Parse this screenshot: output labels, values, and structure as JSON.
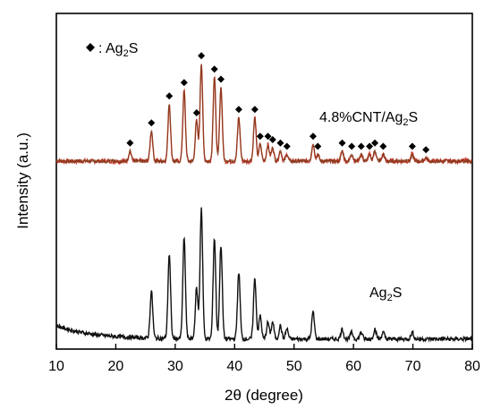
{
  "chart_data": {
    "type": "line",
    "title": "",
    "xlabel": "2θ (degree)",
    "ylabel": "Intensity (a.u.)",
    "xlim": [
      10,
      80
    ],
    "ylim": [
      0,
      1
    ],
    "x_ticks": [
      10,
      20,
      30,
      40,
      50,
      60,
      70,
      80
    ],
    "y_ticks_shown": false,
    "grid": false,
    "legend": {
      "marker": "diamond",
      "text_prefix": ": Ag",
      "text_sub": "2",
      "text_suffix": "S",
      "position": "top-left"
    },
    "series": [
      {
        "label_main": "4.8%CNT/Ag",
        "label_sub": "2",
        "label_tail": "S",
        "color": "#c0392b",
        "overlay_color": "#7a3b1a",
        "baseline": 0.56,
        "peaks": [
          {
            "x": 22.4,
            "h": 0.03
          },
          {
            "x": 26.0,
            "h": 0.09
          },
          {
            "x": 29.0,
            "h": 0.17
          },
          {
            "x": 31.5,
            "h": 0.21
          },
          {
            "x": 33.6,
            "h": 0.12
          },
          {
            "x": 34.4,
            "h": 0.29
          },
          {
            "x": 36.6,
            "h": 0.25
          },
          {
            "x": 37.7,
            "h": 0.22
          },
          {
            "x": 40.7,
            "h": 0.13
          },
          {
            "x": 43.4,
            "h": 0.13
          },
          {
            "x": 44.3,
            "h": 0.05
          },
          {
            "x": 45.6,
            "h": 0.05
          },
          {
            "x": 46.4,
            "h": 0.04
          },
          {
            "x": 47.7,
            "h": 0.03
          },
          {
            "x": 48.8,
            "h": 0.02
          },
          {
            "x": 53.2,
            "h": 0.05
          },
          {
            "x": 54.0,
            "h": 0.02
          },
          {
            "x": 58.1,
            "h": 0.03
          },
          {
            "x": 59.7,
            "h": 0.02
          },
          {
            "x": 61.3,
            "h": 0.02
          },
          {
            "x": 62.7,
            "h": 0.02
          },
          {
            "x": 63.6,
            "h": 0.03
          },
          {
            "x": 65.0,
            "h": 0.02
          },
          {
            "x": 69.9,
            "h": 0.02
          },
          {
            "x": 72.2,
            "h": 0.01
          }
        ],
        "diamond_markers": [
          22.4,
          26.0,
          29.0,
          31.5,
          33.6,
          34.4,
          36.6,
          37.7,
          40.7,
          43.4,
          44.3,
          45.6,
          46.4,
          47.7,
          48.8,
          53.2,
          54.0,
          58.1,
          59.7,
          61.3,
          62.7,
          63.6,
          65.0,
          69.9,
          72.2
        ]
      },
      {
        "label_main": "Ag",
        "label_sub": "2",
        "label_tail": "S",
        "color": "#111111",
        "baseline": 0.03,
        "start_hump": 0.04,
        "peaks": [
          {
            "x": 26.0,
            "h": 0.14
          },
          {
            "x": 29.0,
            "h": 0.25
          },
          {
            "x": 31.5,
            "h": 0.3
          },
          {
            "x": 33.6,
            "h": 0.15
          },
          {
            "x": 34.4,
            "h": 0.39
          },
          {
            "x": 36.6,
            "h": 0.3
          },
          {
            "x": 37.7,
            "h": 0.28
          },
          {
            "x": 40.7,
            "h": 0.2
          },
          {
            "x": 43.4,
            "h": 0.18
          },
          {
            "x": 44.3,
            "h": 0.07
          },
          {
            "x": 45.6,
            "h": 0.05
          },
          {
            "x": 46.4,
            "h": 0.05
          },
          {
            "x": 47.7,
            "h": 0.04
          },
          {
            "x": 48.8,
            "h": 0.03
          },
          {
            "x": 53.2,
            "h": 0.08
          },
          {
            "x": 58.1,
            "h": 0.03
          },
          {
            "x": 59.7,
            "h": 0.02
          },
          {
            "x": 61.3,
            "h": 0.02
          },
          {
            "x": 63.6,
            "h": 0.03
          },
          {
            "x": 65.0,
            "h": 0.02
          },
          {
            "x": 69.9,
            "h": 0.02
          }
        ]
      }
    ]
  }
}
